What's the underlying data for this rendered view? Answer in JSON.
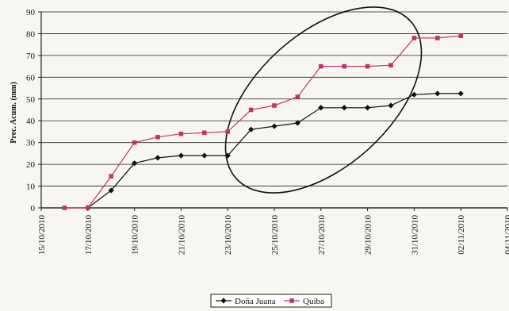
{
  "chart_data": {
    "type": "line",
    "title": "",
    "xlabel": "",
    "ylabel": "Prec. Acum. (mm)",
    "ylim": [
      0,
      90
    ],
    "yticks": [
      "0",
      "10",
      "20",
      "30",
      "40",
      "50",
      "60",
      "70",
      "80",
      "90"
    ],
    "xticks": [
      "15/10/2010",
      "17/10/2010",
      "19/10/2010",
      "21/10/2010",
      "23/10/2010",
      "25/10/2010",
      "27/10/2010",
      "29/10/2010",
      "31/10/2010",
      "02/11/2010",
      "04/11/2010"
    ],
    "grid": "horizontal",
    "legend_position": "bottom",
    "x": [
      "16/10/2010",
      "17/10/2010",
      "18/10/2010",
      "19/10/2010",
      "20/10/2010",
      "21/10/2010",
      "22/10/2010",
      "23/10/2010",
      "24/10/2010",
      "25/10/2010",
      "26/10/2010",
      "27/10/2010",
      "28/10/2010",
      "29/10/2010",
      "30/10/2010",
      "31/10/2010",
      "01/11/2010",
      "02/11/2010"
    ],
    "series": [
      {
        "name": "Doña Juana",
        "color": "#111111",
        "marker": "diamond",
        "values": [
          null,
          0,
          8,
          20.5,
          23,
          24,
          24,
          24,
          36,
          37.5,
          39,
          46,
          46,
          46,
          47,
          52,
          52.5,
          52.5
        ]
      },
      {
        "name": "Quiba",
        "color": "#c0336b",
        "marker": "square",
        "values": [
          0,
          0,
          14.5,
          30,
          32.5,
          34,
          34.5,
          35,
          45,
          47,
          51,
          65,
          65,
          65,
          65.5,
          78,
          78,
          79
        ]
      }
    ]
  }
}
